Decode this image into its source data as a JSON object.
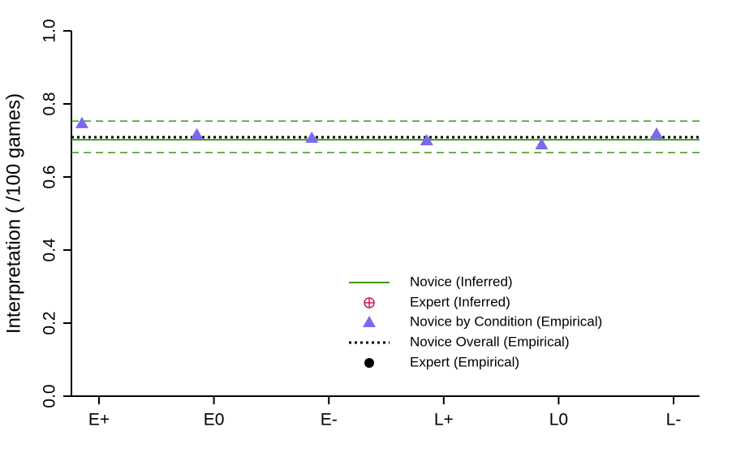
{
  "chart_data": {
    "type": "scatter",
    "ylabel": "Interpretation ( /100 games)",
    "categories": [
      "E+",
      "E0",
      "E-",
      "L+",
      "L0",
      "L-"
    ],
    "ylim": [
      0,
      1
    ],
    "yticks": [
      {
        "value": 0,
        "label": "0.0"
      },
      0.2,
      0.4,
      0.6,
      0.8,
      {
        "value": 1,
        "label": "1.0"
      }
    ],
    "novice_inferred": {
      "name": "Novice (Inferred)",
      "color": "#3a9a1a",
      "value": 0.702,
      "lower": 0.667,
      "upper": 0.753
    },
    "expert_inferred": {
      "name": "Expert (Inferred)",
      "color": "#c8184a"
    },
    "series": [
      {
        "name": "Novice by Condition (Empirical)",
        "color": "#7b68ee",
        "values": [
          0.747,
          0.716,
          0.707,
          0.7,
          0.689,
          0.718
        ]
      }
    ],
    "novice_overall": {
      "name": "Novice Overall (Empirical)",
      "color": "#000000",
      "value": 0.709
    },
    "expert_empirical": {
      "name": "Expert (Empirical)",
      "color": "#000000"
    }
  }
}
